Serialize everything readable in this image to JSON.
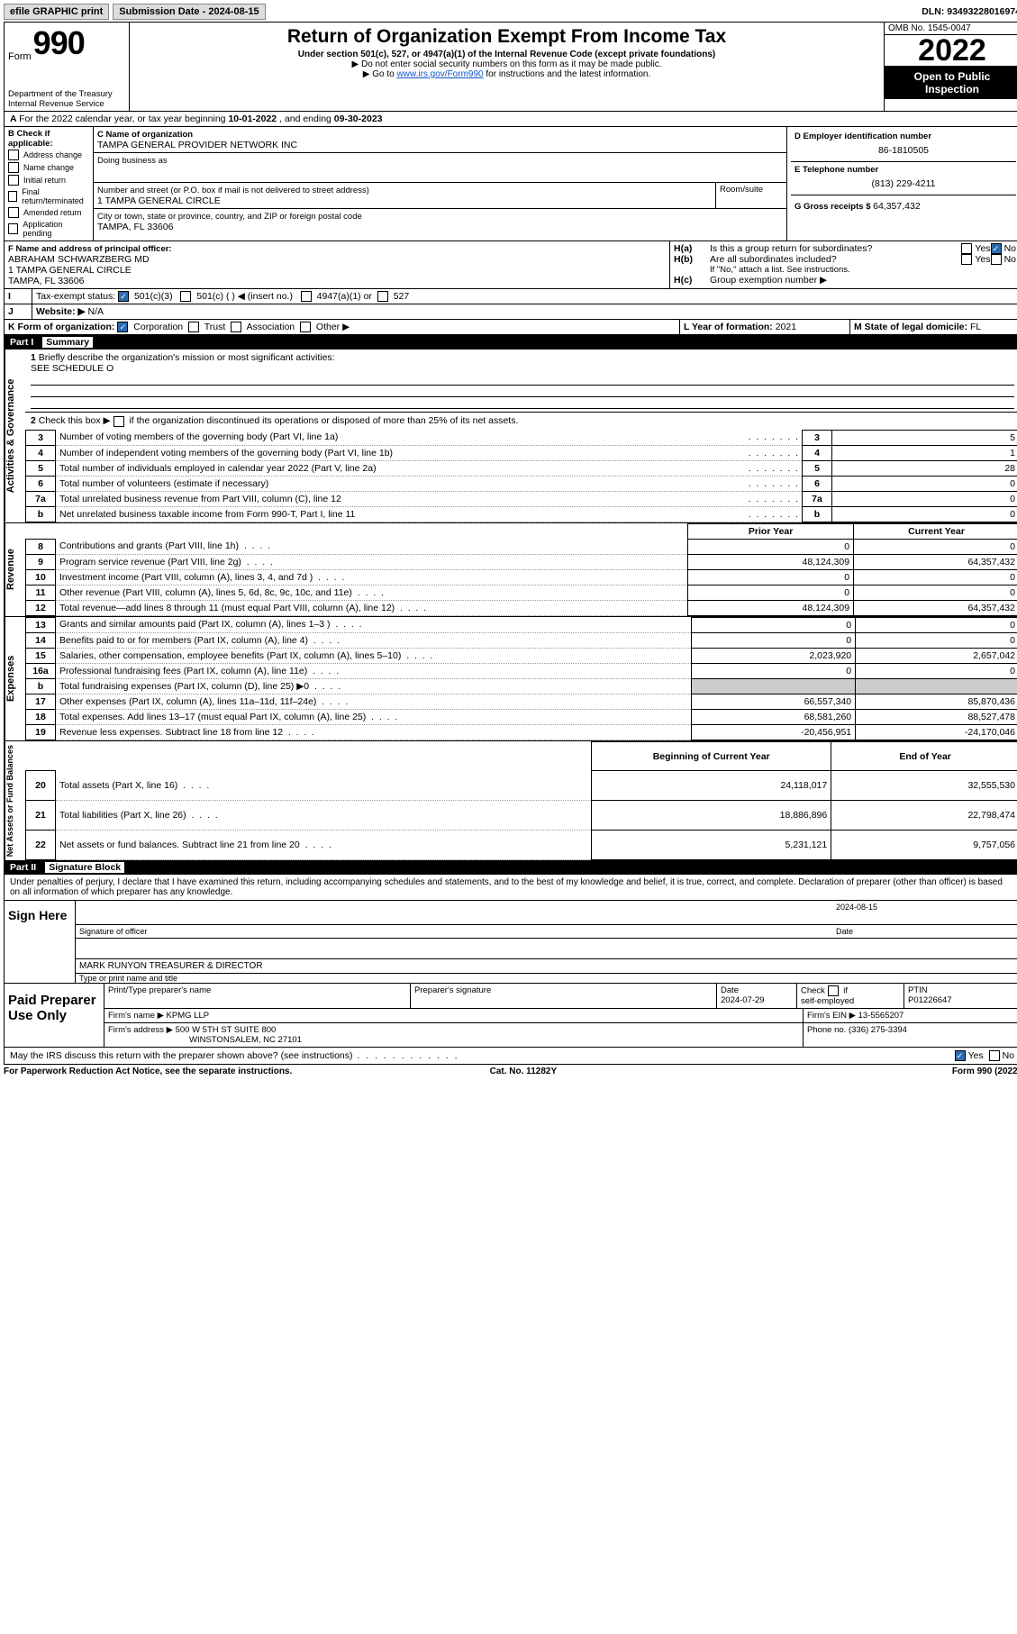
{
  "topbar": {
    "efile": "efile GRAPHIC print",
    "sub_label": "Submission Date - ",
    "sub_date": "2024-08-15",
    "dln_label": "DLN: ",
    "dln": "93493228016974"
  },
  "header": {
    "form_label": "Form",
    "form_num": "990",
    "title": "Return of Organization Exempt From Income Tax",
    "sub1": "Under section 501(c), 527, or 4947(a)(1) of the Internal Revenue Code (except private foundations)",
    "sub2": "▶ Do not enter social security numbers on this form as it may be made public.",
    "sub3a": "▶ Go to ",
    "sub3link": "www.irs.gov/Form990",
    "sub3b": " for instructions and the latest information.",
    "dept": "Department of the Treasury",
    "irs": "Internal Revenue Service",
    "omb": "OMB No. 1545-0047",
    "year": "2022",
    "open": "Open to Public",
    "insp": "Inspection"
  },
  "A": {
    "text": "For the 2022 calendar year, or tax year beginning ",
    "begin": "10-01-2022",
    "mid": " , and ending ",
    "end": "09-30-2023"
  },
  "B": {
    "label": "B Check if applicable:",
    "opts": [
      "Address change",
      "Name change",
      "Initial return",
      "Final return/terminated",
      "Amended return",
      "Application pending"
    ]
  },
  "C": {
    "label": "C Name of organization",
    "name": "TAMPA GENERAL PROVIDER NETWORK INC",
    "dba_label": "Doing business as",
    "dba": "",
    "street_label": "Number and street (or P.O. box if mail is not delivered to street address)",
    "room_label": "Room/suite",
    "street": "1 TAMPA GENERAL CIRCLE",
    "city_label": "City or town, state or province, country, and ZIP or foreign postal code",
    "city": "TAMPA, FL  33606"
  },
  "D": {
    "label": "D Employer identification number",
    "ein": "86-1810505"
  },
  "E": {
    "label": "E Telephone number",
    "phone": "(813) 229-4211"
  },
  "G": {
    "label": "G Gross receipts $ ",
    "val": "64,357,432"
  },
  "F": {
    "label": "F  Name and address of principal officer:",
    "name": "ABRAHAM SCHWARZBERG MD",
    "addr1": "1 TAMPA GENERAL CIRCLE",
    "addr2": "TAMPA, FL  33606"
  },
  "H": {
    "a": "Is this a group return for subordinates?",
    "b": "Are all subordinates included?",
    "note": "If \"No,\" attach a list. See instructions.",
    "c": "Group exemption number ▶",
    "yes": "Yes",
    "no": "No",
    "ha": "H(a)",
    "hb": "H(b)",
    "hc": "H(c)"
  },
  "I": {
    "label": "Tax-exempt status:",
    "c1": "501(c)(3)",
    "c2": "501(c) (  ) ◀ (insert no.)",
    "c3": "4947(a)(1) or",
    "c4": "527"
  },
  "J": {
    "label": "Website: ▶",
    "val": "N/A"
  },
  "K": {
    "label": "K Form of organization:",
    "o1": "Corporation",
    "o2": "Trust",
    "o3": "Association",
    "o4": "Other ▶"
  },
  "L": {
    "label": "L Year of formation: ",
    "val": "2021"
  },
  "M": {
    "label": "M State of legal domicile: ",
    "val": "FL"
  },
  "part1": {
    "num": "Part I",
    "title": "Summary",
    "l1": "Briefly describe the organization's mission or most significant activities:",
    "l1val": "SEE SCHEDULE O",
    "l2": "Check this box ▶",
    "l2b": "if the organization discontinued its operations or disposed of more than 25% of its net assets.",
    "rows_top": [
      {
        "n": "3",
        "t": "Number of voting members of the governing body (Part VI, line 1a)",
        "v": "5"
      },
      {
        "n": "4",
        "t": "Number of independent voting members of the governing body (Part VI, line 1b)",
        "v": "1"
      },
      {
        "n": "5",
        "t": "Total number of individuals employed in calendar year 2022 (Part V, line 2a)",
        "v": "28"
      },
      {
        "n": "6",
        "t": "Total number of volunteers (estimate if necessary)",
        "v": "0"
      },
      {
        "n": "7a",
        "t": "Total unrelated business revenue from Part VIII, column (C), line 12",
        "v": "0"
      },
      {
        "n": "b",
        "t": "Net unrelated business taxable income from Form 990-T, Part I, line 11",
        "v": "0"
      }
    ],
    "col_prior": "Prior Year",
    "col_curr": "Current Year",
    "rev": [
      {
        "n": "8",
        "t": "Contributions and grants (Part VIII, line 1h)",
        "p": "0",
        "c": "0"
      },
      {
        "n": "9",
        "t": "Program service revenue (Part VIII, line 2g)",
        "p": "48,124,309",
        "c": "64,357,432"
      },
      {
        "n": "10",
        "t": "Investment income (Part VIII, column (A), lines 3, 4, and 7d )",
        "p": "0",
        "c": "0"
      },
      {
        "n": "11",
        "t": "Other revenue (Part VIII, column (A), lines 5, 6d, 8c, 9c, 10c, and 11e)",
        "p": "0",
        "c": "0"
      },
      {
        "n": "12",
        "t": "Total revenue—add lines 8 through 11 (must equal Part VIII, column (A), line 12)",
        "p": "48,124,309",
        "c": "64,357,432"
      }
    ],
    "exp": [
      {
        "n": "13",
        "t": "Grants and similar amounts paid (Part IX, column (A), lines 1–3 )",
        "p": "0",
        "c": "0"
      },
      {
        "n": "14",
        "t": "Benefits paid to or for members (Part IX, column (A), line 4)",
        "p": "0",
        "c": "0"
      },
      {
        "n": "15",
        "t": "Salaries, other compensation, employee benefits (Part IX, column (A), lines 5–10)",
        "p": "2,023,920",
        "c": "2,657,042"
      },
      {
        "n": "16a",
        "t": "Professional fundraising fees (Part IX, column (A), line 11e)",
        "p": "0",
        "c": "0"
      },
      {
        "n": "b",
        "t": "Total fundraising expenses (Part IX, column (D), line 25) ▶0",
        "p": "",
        "c": ""
      },
      {
        "n": "17",
        "t": "Other expenses (Part IX, column (A), lines 11a–11d, 11f–24e)",
        "p": "66,557,340",
        "c": "85,870,436"
      },
      {
        "n": "18",
        "t": "Total expenses. Add lines 13–17 (must equal Part IX, column (A), line 25)",
        "p": "68,581,260",
        "c": "88,527,478"
      },
      {
        "n": "19",
        "t": "Revenue less expenses. Subtract line 18 from line 12",
        "p": "-20,456,951",
        "c": "-24,170,046"
      }
    ],
    "col_beg": "Beginning of Current Year",
    "col_end": "End of Year",
    "net": [
      {
        "n": "20",
        "t": "Total assets (Part X, line 16)",
        "p": "24,118,017",
        "c": "32,555,530"
      },
      {
        "n": "21",
        "t": "Total liabilities (Part X, line 26)",
        "p": "18,886,896",
        "c": "22,798,474"
      },
      {
        "n": "22",
        "t": "Net assets or fund balances. Subtract line 21 from line 20",
        "p": "5,231,121",
        "c": "9,757,056"
      }
    ],
    "vtabs": {
      "a": "Activities & Governance",
      "r": "Revenue",
      "e": "Expenses",
      "n": "Net Assets or Fund Balances"
    }
  },
  "part2": {
    "num": "Part II",
    "title": "Signature Block",
    "decl": "Under penalties of perjury, I declare that I have examined this return, including accompanying schedules and statements, and to the best of my knowledge and belief, it is true, correct, and complete. Declaration of preparer (other than officer) is based on all information of which preparer has any knowledge.",
    "sign_here": "Sign Here",
    "sig_officer": "Signature of officer",
    "sig_date": "2024-08-15",
    "date_label": "Date",
    "officer_name": "MARK RUNYON TREASURER & DIRECTOR",
    "officer_label": "Type or print name and title",
    "paid": "Paid Preparer Use Only",
    "p_name_label": "Print/Type preparer's name",
    "p_sig_label": "Preparer's signature",
    "p_date_label": "Date",
    "p_date": "2024-07-29",
    "p_check": "Check",
    "p_self": "self-employed",
    "p_if": "if",
    "ptin_label": "PTIN",
    "ptin": "P01226647",
    "firm_label": "Firm's name    ▶",
    "firm": "KPMG LLP",
    "fein_label": "Firm's EIN ▶",
    "fein": "13-5565207",
    "faddr_label": "Firm's address ▶",
    "faddr1": "500 W 5TH ST SUITE 800",
    "faddr2": "WINSTONSALEM, NC  27101",
    "fphone_label": "Phone no. ",
    "fphone": "(336) 275-3394",
    "may": "May the IRS discuss this return with the preparer shown above? (see instructions)"
  },
  "footer": {
    "l": "For Paperwork Reduction Act Notice, see the separate instructions.",
    "c": "Cat. No. 11282Y",
    "r": "Form 990 (2022)"
  }
}
